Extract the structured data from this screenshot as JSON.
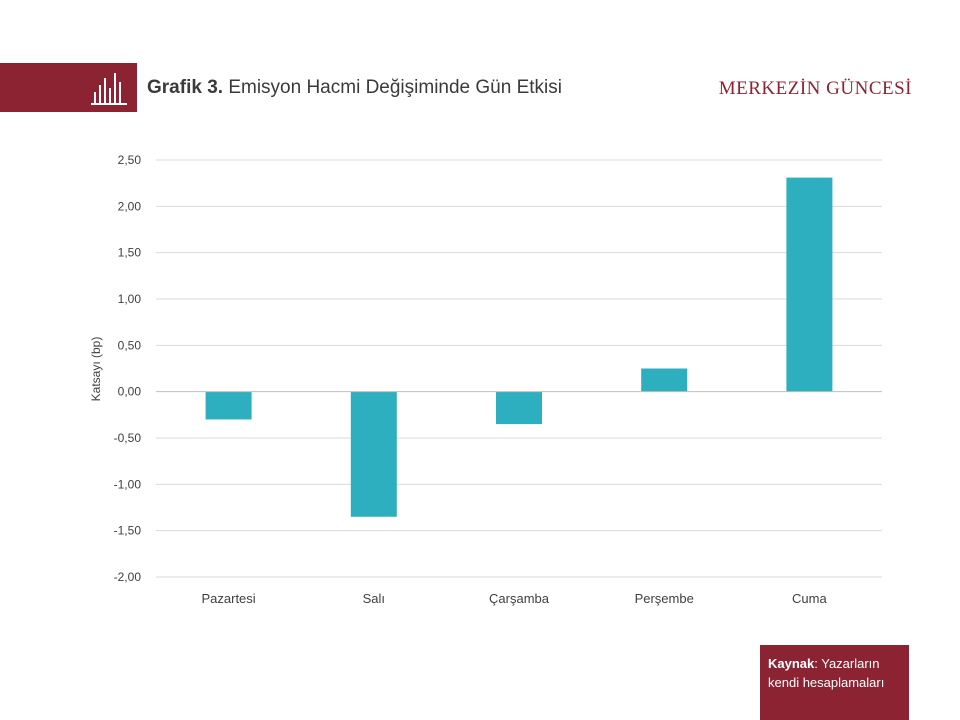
{
  "header": {
    "title_lead": "Grafik 3.",
    "title_rest": "Emisyon Hacmi Değişiminde Gün Etkisi",
    "brand": "MERKEZİN GÜNCESİ",
    "band_color": "#8b2332",
    "icon": "bar-chart-icon"
  },
  "source": {
    "key": "Kaynak",
    "text": ": Yazarların kendi hesaplamaları"
  },
  "chart_data": {
    "type": "bar",
    "title": "Emisyon Hacmi Değişiminde Gün Etkisi",
    "xlabel": "",
    "ylabel": "Katsayı (bp)",
    "categories": [
      "Pazartesi",
      "Salı",
      "Çarşamba",
      "Perşembe",
      "Cuma"
    ],
    "values": [
      -0.3,
      -1.35,
      -0.35,
      0.25,
      2.31
    ],
    "ylim": [
      -2.0,
      2.5
    ],
    "yticks": [
      2.5,
      2.0,
      1.5,
      1.0,
      0.5,
      0.0,
      -0.5,
      -1.0,
      -1.5,
      -2.0
    ],
    "ytick_labels": [
      "2,50",
      "2,00",
      "1,50",
      "1,00",
      "0,50",
      "0,00",
      "-0,50",
      "-1,00",
      "-1,50",
      "-2,00"
    ],
    "grid": true,
    "bar_color": "#2eafc0"
  }
}
